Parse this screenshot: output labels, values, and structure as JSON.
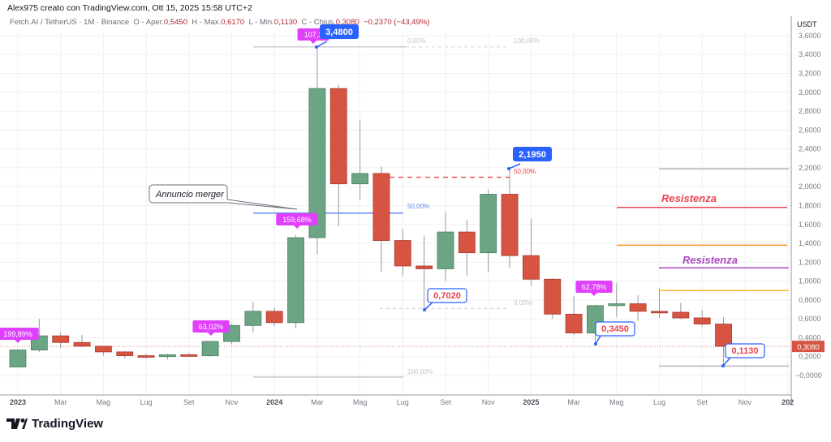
{
  "header": {
    "author_line": "Alex975 creato con TradingView.com, Ott 15, 2025 15:58 UTC+2"
  },
  "legend": {
    "symbol": "Fetch.AI / TetherUS · 1M · Binance",
    "open_label": "O - Aper.",
    "open": "0,5450",
    "high_label": "H - Max.",
    "high": "0,6170",
    "low_label": "L - Min.",
    "low": "0,1130",
    "close_label": "C - Chius.",
    "close": "0,3080",
    "change": "−0,2370 (−43,49%)"
  },
  "brand": {
    "name": "TradingView"
  },
  "colors": {
    "up": "#6ba583",
    "down": "#d75442",
    "grid": "#eef0f3",
    "axis_text": "#787b86",
    "accent_blue": "#2962ff",
    "magenta": "#e040fb"
  },
  "chart_data": {
    "type": "candlestick",
    "title": "Fetch.AI / TetherUS · 1M · Binance",
    "ylabel": "USDT",
    "ylim": [
      -0.1,
      3.7
    ],
    "yticks": [
      "3,6000",
      "3,4000",
      "3,2000",
      "3,0000",
      "2,8000",
      "2,6000",
      "2,4000",
      "2,2000",
      "2,0000",
      "1,8000",
      "1,6000",
      "1,4000",
      "1,2000",
      "1,0000",
      "0,8000",
      "0,6000",
      "0,4000",
      "0,2000",
      "−0,0000"
    ],
    "xticks": [
      "2023",
      "Mar",
      "Mag",
      "Lug",
      "Set",
      "Nov",
      "2024",
      "Mar",
      "Mag",
      "Lug",
      "Set",
      "Nov",
      "2025",
      "Mar",
      "Mag",
      "Lug",
      "Set",
      "Nov",
      "202"
    ],
    "current_price": "0,3080",
    "candles": [
      {
        "t": "2023-01",
        "o": 0.09,
        "h": 0.28,
        "l": 0.09,
        "c": 0.27
      },
      {
        "t": "2023-02",
        "o": 0.27,
        "h": 0.6,
        "l": 0.25,
        "c": 0.42
      },
      {
        "t": "2023-03",
        "o": 0.42,
        "h": 0.46,
        "l": 0.29,
        "c": 0.35
      },
      {
        "t": "2023-04",
        "o": 0.35,
        "h": 0.43,
        "l": 0.3,
        "c": 0.31
      },
      {
        "t": "2023-05",
        "o": 0.31,
        "h": 0.31,
        "l": 0.21,
        "c": 0.25
      },
      {
        "t": "2023-06",
        "o": 0.25,
        "h": 0.26,
        "l": 0.18,
        "c": 0.21
      },
      {
        "t": "2023-07",
        "o": 0.21,
        "h": 0.23,
        "l": 0.18,
        "c": 0.2
      },
      {
        "t": "2023-08",
        "o": 0.2,
        "h": 0.23,
        "l": 0.17,
        "c": 0.22
      },
      {
        "t": "2023-09",
        "o": 0.22,
        "h": 0.24,
        "l": 0.21,
        "c": 0.21
      },
      {
        "t": "2023-10",
        "o": 0.21,
        "h": 0.37,
        "l": 0.2,
        "c": 0.36
      },
      {
        "t": "2023-11",
        "o": 0.36,
        "h": 0.55,
        "l": 0.33,
        "c": 0.53
      },
      {
        "t": "2023-12",
        "o": 0.53,
        "h": 0.78,
        "l": 0.46,
        "c": 0.68
      },
      {
        "t": "2024-01",
        "o": 0.68,
        "h": 0.72,
        "l": 0.52,
        "c": 0.56
      },
      {
        "t": "2024-02",
        "o": 0.56,
        "h": 1.49,
        "l": 0.5,
        "c": 1.46
      },
      {
        "t": "2024-03",
        "o": 1.46,
        "h": 3.48,
        "l": 1.28,
        "c": 3.04
      },
      {
        "t": "2024-04",
        "o": 3.04,
        "h": 3.08,
        "l": 1.58,
        "c": 2.03
      },
      {
        "t": "2024-05",
        "o": 2.03,
        "h": 2.71,
        "l": 1.86,
        "c": 2.14
      },
      {
        "t": "2024-06",
        "o": 2.14,
        "h": 2.21,
        "l": 1.1,
        "c": 1.43
      },
      {
        "t": "2024-07",
        "o": 1.43,
        "h": 1.55,
        "l": 1.06,
        "c": 1.16
      },
      {
        "t": "2024-08",
        "o": 1.16,
        "h": 1.48,
        "l": 0.7,
        "c": 1.13
      },
      {
        "t": "2024-09",
        "o": 1.13,
        "h": 1.74,
        "l": 1.0,
        "c": 1.52
      },
      {
        "t": "2024-10",
        "o": 1.52,
        "h": 1.65,
        "l": 1.06,
        "c": 1.3
      },
      {
        "t": "2024-11",
        "o": 1.3,
        "h": 1.97,
        "l": 1.1,
        "c": 1.92
      },
      {
        "t": "2024-12",
        "o": 1.92,
        "h": 2.195,
        "l": 1.14,
        "c": 1.27
      },
      {
        "t": "2025-01",
        "o": 1.27,
        "h": 1.66,
        "l": 0.95,
        "c": 1.02
      },
      {
        "t": "2025-02",
        "o": 1.02,
        "h": 1.03,
        "l": 0.6,
        "c": 0.65
      },
      {
        "t": "2025-03",
        "o": 0.65,
        "h": 0.84,
        "l": 0.43,
        "c": 0.45
      },
      {
        "t": "2025-04",
        "o": 0.45,
        "h": 0.75,
        "l": 0.345,
        "c": 0.74
      },
      {
        "t": "2025-05",
        "o": 0.74,
        "h": 0.98,
        "l": 0.62,
        "c": 0.76
      },
      {
        "t": "2025-06",
        "o": 0.76,
        "h": 0.85,
        "l": 0.58,
        "c": 0.68
      },
      {
        "t": "2025-07",
        "o": 0.68,
        "h": 0.92,
        "l": 0.61,
        "c": 0.67
      },
      {
        "t": "2025-08",
        "o": 0.67,
        "h": 0.77,
        "l": 0.6,
        "c": 0.61
      },
      {
        "t": "2025-09",
        "o": 0.61,
        "h": 0.69,
        "l": 0.52,
        "c": 0.545
      },
      {
        "t": "2025-10",
        "o": 0.545,
        "h": 0.617,
        "l": 0.113,
        "c": 0.308
      }
    ],
    "annotations": [
      {
        "type": "price_label",
        "text": "3,4800",
        "candle": 14,
        "price": 3.48,
        "style": "blue-filled"
      },
      {
        "type": "price_label",
        "text": "2,1950",
        "candle": 23,
        "price": 2.195,
        "style": "blue-filled"
      },
      {
        "type": "price_label",
        "text": "0,7020",
        "candle": 19,
        "price": 0.702,
        "style": "outline-red"
      },
      {
        "type": "price_label",
        "text": "0,3450",
        "candle": 27,
        "price": 0.345,
        "style": "outline-red"
      },
      {
        "type": "price_label",
        "text": "0,1130",
        "candle": 33,
        "price": 0.113,
        "style": "outline-red"
      },
      {
        "type": "pct_label",
        "text": "199,89%",
        "candle": 0,
        "price": 0.27
      },
      {
        "type": "pct_label",
        "text": "63,02%",
        "candle": 9,
        "price": 0.36
      },
      {
        "type": "pct_label",
        "text": "159,68%",
        "candle": 13,
        "price": 1.46
      },
      {
        "type": "pct_label",
        "text": "107,3",
        "candle": 14,
        "price": 3.48
      },
      {
        "type": "pct_label",
        "text": "62,78%",
        "candle": 27,
        "price": 0.74
      },
      {
        "type": "callout",
        "text": "Annuncio merger"
      },
      {
        "type": "text",
        "text": "Resistenza",
        "color": "#e8434f"
      },
      {
        "type": "text",
        "text": "Resistenza",
        "color": "#ab47bc"
      },
      {
        "type": "fib_label",
        "text": "0,00%"
      },
      {
        "type": "fib_label",
        "text": "100,00%"
      },
      {
        "type": "fib_label",
        "text": "50,00%"
      },
      {
        "type": "fib_label",
        "text": "50,00%"
      },
      {
        "type": "fib_label",
        "text": "0,00%"
      },
      {
        "type": "fib_label",
        "text": "100,00%"
      }
    ],
    "horizontal_lines": [
      {
        "price": 1.78,
        "color": "#e8434f",
        "label": "Resistenza"
      },
      {
        "price": 1.38,
        "color": "#f7941d"
      },
      {
        "price": 1.14,
        "color": "#ab47bc",
        "label": "Resistenza"
      },
      {
        "price": 0.9,
        "color": "#f5b82e"
      },
      {
        "price": 2.19,
        "color": "#b2b5be"
      },
      {
        "price": 0.1,
        "color": "#b2b5be"
      }
    ]
  }
}
